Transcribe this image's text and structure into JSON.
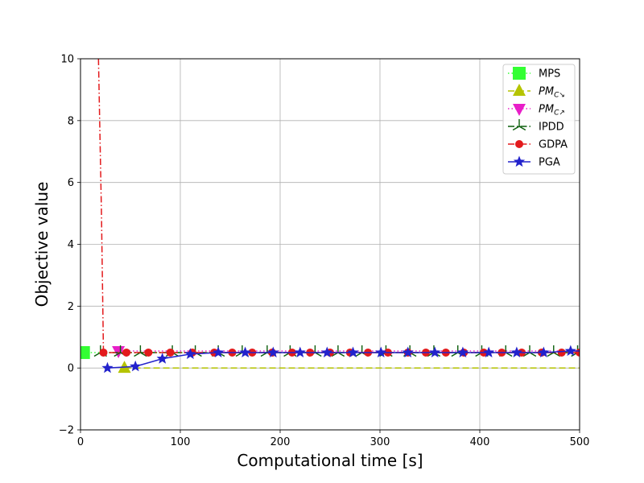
{
  "chart_data": {
    "type": "line",
    "title": "",
    "xlabel": "Computational time [s]",
    "ylabel": "Objective value",
    "xlim": [
      0,
      500
    ],
    "ylim": [
      -2,
      10
    ],
    "xticks": [
      0,
      100,
      200,
      300,
      400,
      500
    ],
    "yticks": [
      -2,
      0,
      2,
      4,
      6,
      8,
      10
    ],
    "grid": true,
    "legend_position": "top-right",
    "series": [
      {
        "name": "MPS",
        "label_parts": [
          "MPS"
        ],
        "color": "#33ff33",
        "line": "dotted",
        "marker": "square",
        "x": [
          3,
          500
        ],
        "y": [
          0.5,
          0.5
        ],
        "marker_x": [
          3
        ]
      },
      {
        "name": "PMC↘",
        "label_parts": [
          "PM",
          "C",
          "↘"
        ],
        "color": "#b5c400",
        "line": "dashed",
        "marker": "triangle-up",
        "x": [
          44,
          500
        ],
        "y": [
          0.0,
          0.0
        ],
        "marker_x": [
          44
        ]
      },
      {
        "name": "PMC↗",
        "label_parts": [
          "PM",
          "C",
          "↗"
        ],
        "color": "#e81ec8",
        "line": "dotted",
        "marker": "triangle-down",
        "x": [
          38,
          500
        ],
        "y": [
          0.55,
          0.55
        ],
        "marker_x": [
          38
        ]
      },
      {
        "name": "IPDD",
        "label_parts": [
          "IPDD"
        ],
        "color": "#0b5e0b",
        "line": "dashdot",
        "marker": "tri",
        "x": [
          20,
          40,
          60,
          92,
          115,
          138,
          162,
          187,
          210,
          235,
          258,
          282,
          306,
          330,
          354,
          378,
          402,
          426,
          450,
          474,
          498
        ],
        "y": [
          0.5,
          0.5,
          0.5,
          0.5,
          0.5,
          0.5,
          0.5,
          0.5,
          0.5,
          0.5,
          0.5,
          0.5,
          0.5,
          0.5,
          0.5,
          0.5,
          0.5,
          0.5,
          0.5,
          0.5,
          0.5
        ]
      },
      {
        "name": "GDPA",
        "label_parts": [
          "GDPA"
        ],
        "color": "#e31a1c",
        "line": "dashdot",
        "marker": "circle",
        "x": [
          18,
          21,
          23,
          46,
          68,
          90,
          112,
          134,
          152,
          172,
          192,
          212,
          230,
          250,
          270,
          288,
          308,
          328,
          346,
          366,
          384,
          404,
          422,
          442,
          462,
          482,
          500
        ],
        "y": [
          10.0,
          5.0,
          0.5,
          0.5,
          0.5,
          0.5,
          0.5,
          0.5,
          0.5,
          0.5,
          0.5,
          0.5,
          0.5,
          0.5,
          0.5,
          0.5,
          0.5,
          0.5,
          0.5,
          0.5,
          0.5,
          0.5,
          0.5,
          0.5,
          0.5,
          0.5,
          0.5
        ],
        "marker_x": [
          23,
          46,
          68,
          90,
          112,
          134,
          152,
          172,
          192,
          212,
          230,
          250,
          270,
          288,
          308,
          328,
          346,
          366,
          384,
          404,
          422,
          442,
          462,
          482,
          500
        ]
      },
      {
        "name": "PGA",
        "label_parts": [
          "PGA"
        ],
        "color": "#2222cc",
        "line": "solid",
        "marker": "star",
        "x": [
          27,
          55,
          82,
          110,
          138,
          165,
          193,
          220,
          247,
          273,
          301,
          328,
          355,
          383,
          409,
          437,
          464,
          491,
          500
        ],
        "y": [
          0.0,
          0.05,
          0.3,
          0.45,
          0.5,
          0.5,
          0.5,
          0.5,
          0.5,
          0.5,
          0.5,
          0.5,
          0.5,
          0.5,
          0.5,
          0.5,
          0.5,
          0.55,
          0.55
        ],
        "marker_x": [
          27,
          55,
          82,
          110,
          138,
          165,
          193,
          220,
          247,
          273,
          301,
          328,
          355,
          383,
          409,
          437,
          464,
          491
        ]
      }
    ]
  }
}
